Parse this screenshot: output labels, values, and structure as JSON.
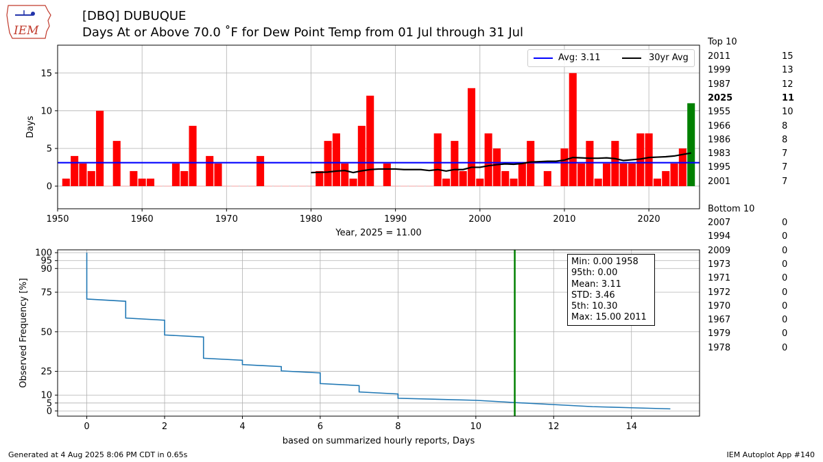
{
  "header": {
    "logo_text": "IEM",
    "title_line1": "[DBQ] DUBUQUE",
    "title_line2": "Days At or Above 70.0 ˚F for Dew Point Temp from 01 Jul through 31 Jul"
  },
  "colors": {
    "bar": "#ff0000",
    "bar_current": "#008000",
    "avg_line": "#0000ff",
    "thirty_yr": "#000000",
    "cdf_line": "#1f77b4",
    "marker_line": "#008000",
    "grid": "#b0b0b0"
  },
  "chart_data": [
    {
      "type": "bar",
      "xlabel": "Year, 2025 = 11.00",
      "ylabel": "Days",
      "xlim": [
        1950,
        2026
      ],
      "ylim": [
        -3,
        18.7
      ],
      "xticks": [
        1950,
        1960,
        1970,
        1980,
        1990,
        2000,
        2010,
        2020
      ],
      "yticks": [
        0,
        5,
        10,
        15
      ],
      "grid": true,
      "legend_position": "top-right",
      "highlight_year": 2025,
      "average": 3.11,
      "legend": {
        "avg_label": "Avg: 3.11",
        "thirty_label": "30yr Avg"
      },
      "years": [
        1951,
        1952,
        1953,
        1954,
        1955,
        1956,
        1957,
        1958,
        1959,
        1960,
        1961,
        1962,
        1963,
        1964,
        1965,
        1966,
        1967,
        1968,
        1969,
        1970,
        1971,
        1972,
        1973,
        1974,
        1975,
        1976,
        1977,
        1978,
        1979,
        1980,
        1981,
        1982,
        1983,
        1984,
        1985,
        1986,
        1987,
        1988,
        1989,
        1990,
        1991,
        1992,
        1993,
        1994,
        1995,
        1996,
        1997,
        1998,
        1999,
        2000,
        2001,
        2002,
        2003,
        2004,
        2005,
        2006,
        2007,
        2008,
        2009,
        2010,
        2011,
        2012,
        2013,
        2014,
        2015,
        2016,
        2017,
        2018,
        2019,
        2020,
        2021,
        2022,
        2023,
        2024,
        2025
      ],
      "values": [
        1,
        4,
        3,
        2,
        10,
        0,
        6,
        0,
        2,
        1,
        1,
        0,
        0,
        3,
        2,
        8,
        0,
        4,
        3,
        0,
        0,
        0,
        0,
        4,
        0,
        0,
        0,
        0,
        0,
        0,
        2,
        6,
        7,
        3,
        1,
        8,
        12,
        0,
        3,
        0,
        0,
        0,
        0,
        0,
        7,
        1,
        6,
        2,
        13,
        1,
        7,
        5,
        2,
        1,
        3,
        6,
        0,
        2,
        0,
        5,
        15,
        3,
        6,
        1,
        3,
        6,
        3,
        3,
        7,
        7,
        1,
        2,
        3,
        5,
        11
      ],
      "thirty_yr_avg": {
        "years": [
          1980,
          1981,
          1982,
          1983,
          1984,
          1985,
          1986,
          1987,
          1988,
          1989,
          1990,
          1991,
          1992,
          1993,
          1994,
          1995,
          1996,
          1997,
          1998,
          1999,
          2000,
          2001,
          2002,
          2003,
          2004,
          2005,
          2006,
          2007,
          2008,
          2009,
          2010,
          2011,
          2012,
          2013,
          2014,
          2015,
          2016,
          2017,
          2018,
          2019,
          2020,
          2021,
          2022,
          2023,
          2024,
          2025
        ],
        "values": [
          1.8,
          1.83,
          1.87,
          2.0,
          2.07,
          1.8,
          2.03,
          2.2,
          2.27,
          2.27,
          2.27,
          2.2,
          2.2,
          2.2,
          2.07,
          2.2,
          2.0,
          2.2,
          2.2,
          2.5,
          2.5,
          2.7,
          2.85,
          2.95,
          2.9,
          3.0,
          3.2,
          3.25,
          3.3,
          3.3,
          3.45,
          3.8,
          3.75,
          3.7,
          3.7,
          3.75,
          3.65,
          3.4,
          3.5,
          3.6,
          3.8,
          3.85,
          3.9,
          4.0,
          4.2,
          4.4
        ]
      }
    },
    {
      "type": "line",
      "xlabel": "based on summarized hourly reports, Days",
      "ylabel": "Observed Frequency [%]",
      "xlim": [
        -0.75,
        15.75
      ],
      "ylim": [
        -3.3,
        101.8
      ],
      "xticks": [
        0,
        2,
        4,
        6,
        8,
        10,
        12,
        14
      ],
      "yticks": [
        0,
        5,
        10,
        25,
        50,
        75,
        90,
        95,
        100
      ],
      "grid": true,
      "marker_x": 11,
      "x": [
        0,
        0,
        1,
        1,
        2,
        2,
        3,
        3,
        4,
        4,
        5,
        5,
        6,
        6,
        7,
        7,
        8,
        8,
        10,
        11,
        12,
        13,
        14,
        15
      ],
      "y": [
        100,
        70.7,
        69.3,
        58.7,
        57.3,
        48,
        46.7,
        33.3,
        32,
        29.3,
        28,
        25.3,
        24,
        17.3,
        16,
        12,
        10.7,
        8,
        6.7,
        5.3,
        4,
        2.7,
        2.0,
        1.3
      ]
    }
  ],
  "top10": {
    "title": "Top 10",
    "rows": [
      {
        "year": "2011",
        "value": "15"
      },
      {
        "year": "1999",
        "value": "13"
      },
      {
        "year": "1987",
        "value": "12"
      },
      {
        "year": "2025",
        "value": "11"
      },
      {
        "year": "1955",
        "value": "10"
      },
      {
        "year": "1966",
        "value": "8"
      },
      {
        "year": "1986",
        "value": "8"
      },
      {
        "year": "1983",
        "value": "7"
      },
      {
        "year": "1995",
        "value": "7"
      },
      {
        "year": "2001",
        "value": "7"
      }
    ]
  },
  "bottom10": {
    "title": "Bottom 10",
    "rows": [
      {
        "year": "2007",
        "value": "0"
      },
      {
        "year": "1994",
        "value": "0"
      },
      {
        "year": "2009",
        "value": "0"
      },
      {
        "year": "1973",
        "value": "0"
      },
      {
        "year": "1971",
        "value": "0"
      },
      {
        "year": "1972",
        "value": "0"
      },
      {
        "year": "1970",
        "value": "0"
      },
      {
        "year": "1967",
        "value": "0"
      },
      {
        "year": "1979",
        "value": "0"
      },
      {
        "year": "1978",
        "value": "0"
      }
    ]
  },
  "stats": {
    "min": "Min: 0.00 1958",
    "p95": "95th: 0.00",
    "mean": "Mean: 3.11",
    "std": "STD: 3.46",
    "p5": "5th: 10.30",
    "max": "Max: 15.00 2011"
  },
  "footer": {
    "left": "Generated at 4 Aug 2025 8:06 PM CDT in 0.65s",
    "right": "IEM Autoplot App #140"
  }
}
